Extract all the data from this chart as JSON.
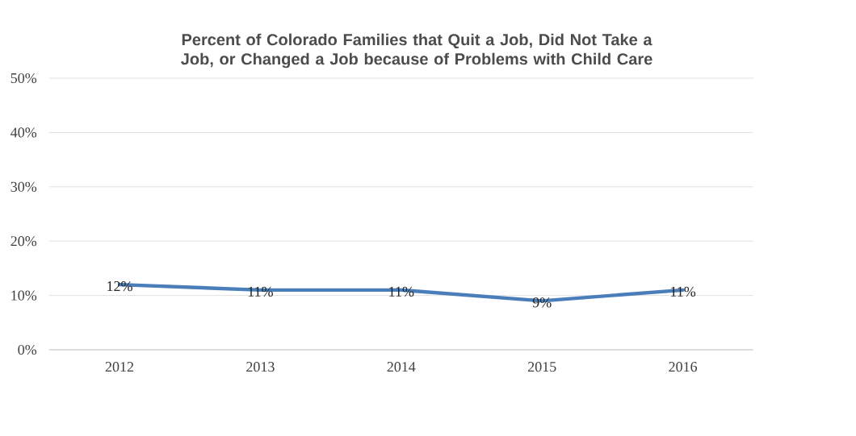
{
  "chart_data": {
    "type": "line",
    "title": "Percent of Colorado Families that Quit a Job, Did Not Take a Job, or Changed a Job because of Problems with Child Care",
    "categories": [
      "2012",
      "2013",
      "2014",
      "2015",
      "2016"
    ],
    "values": [
      12,
      11,
      11,
      9,
      11
    ],
    "value_labels": [
      "12%",
      "11%",
      "11%",
      "9%",
      "11%"
    ],
    "color": "#4a7ebb",
    "ylim": [
      0,
      50
    ],
    "yticks": [
      {
        "value": 0,
        "label": "0%"
      },
      {
        "value": 10,
        "label": "10%"
      },
      {
        "value": 20,
        "label": "20%"
      },
      {
        "value": 30,
        "label": "30%"
      },
      {
        "value": 40,
        "label": "40%"
      },
      {
        "value": 50,
        "label": "50%"
      }
    ],
    "grid": "y",
    "marker": "none",
    "line_style": "solid"
  }
}
